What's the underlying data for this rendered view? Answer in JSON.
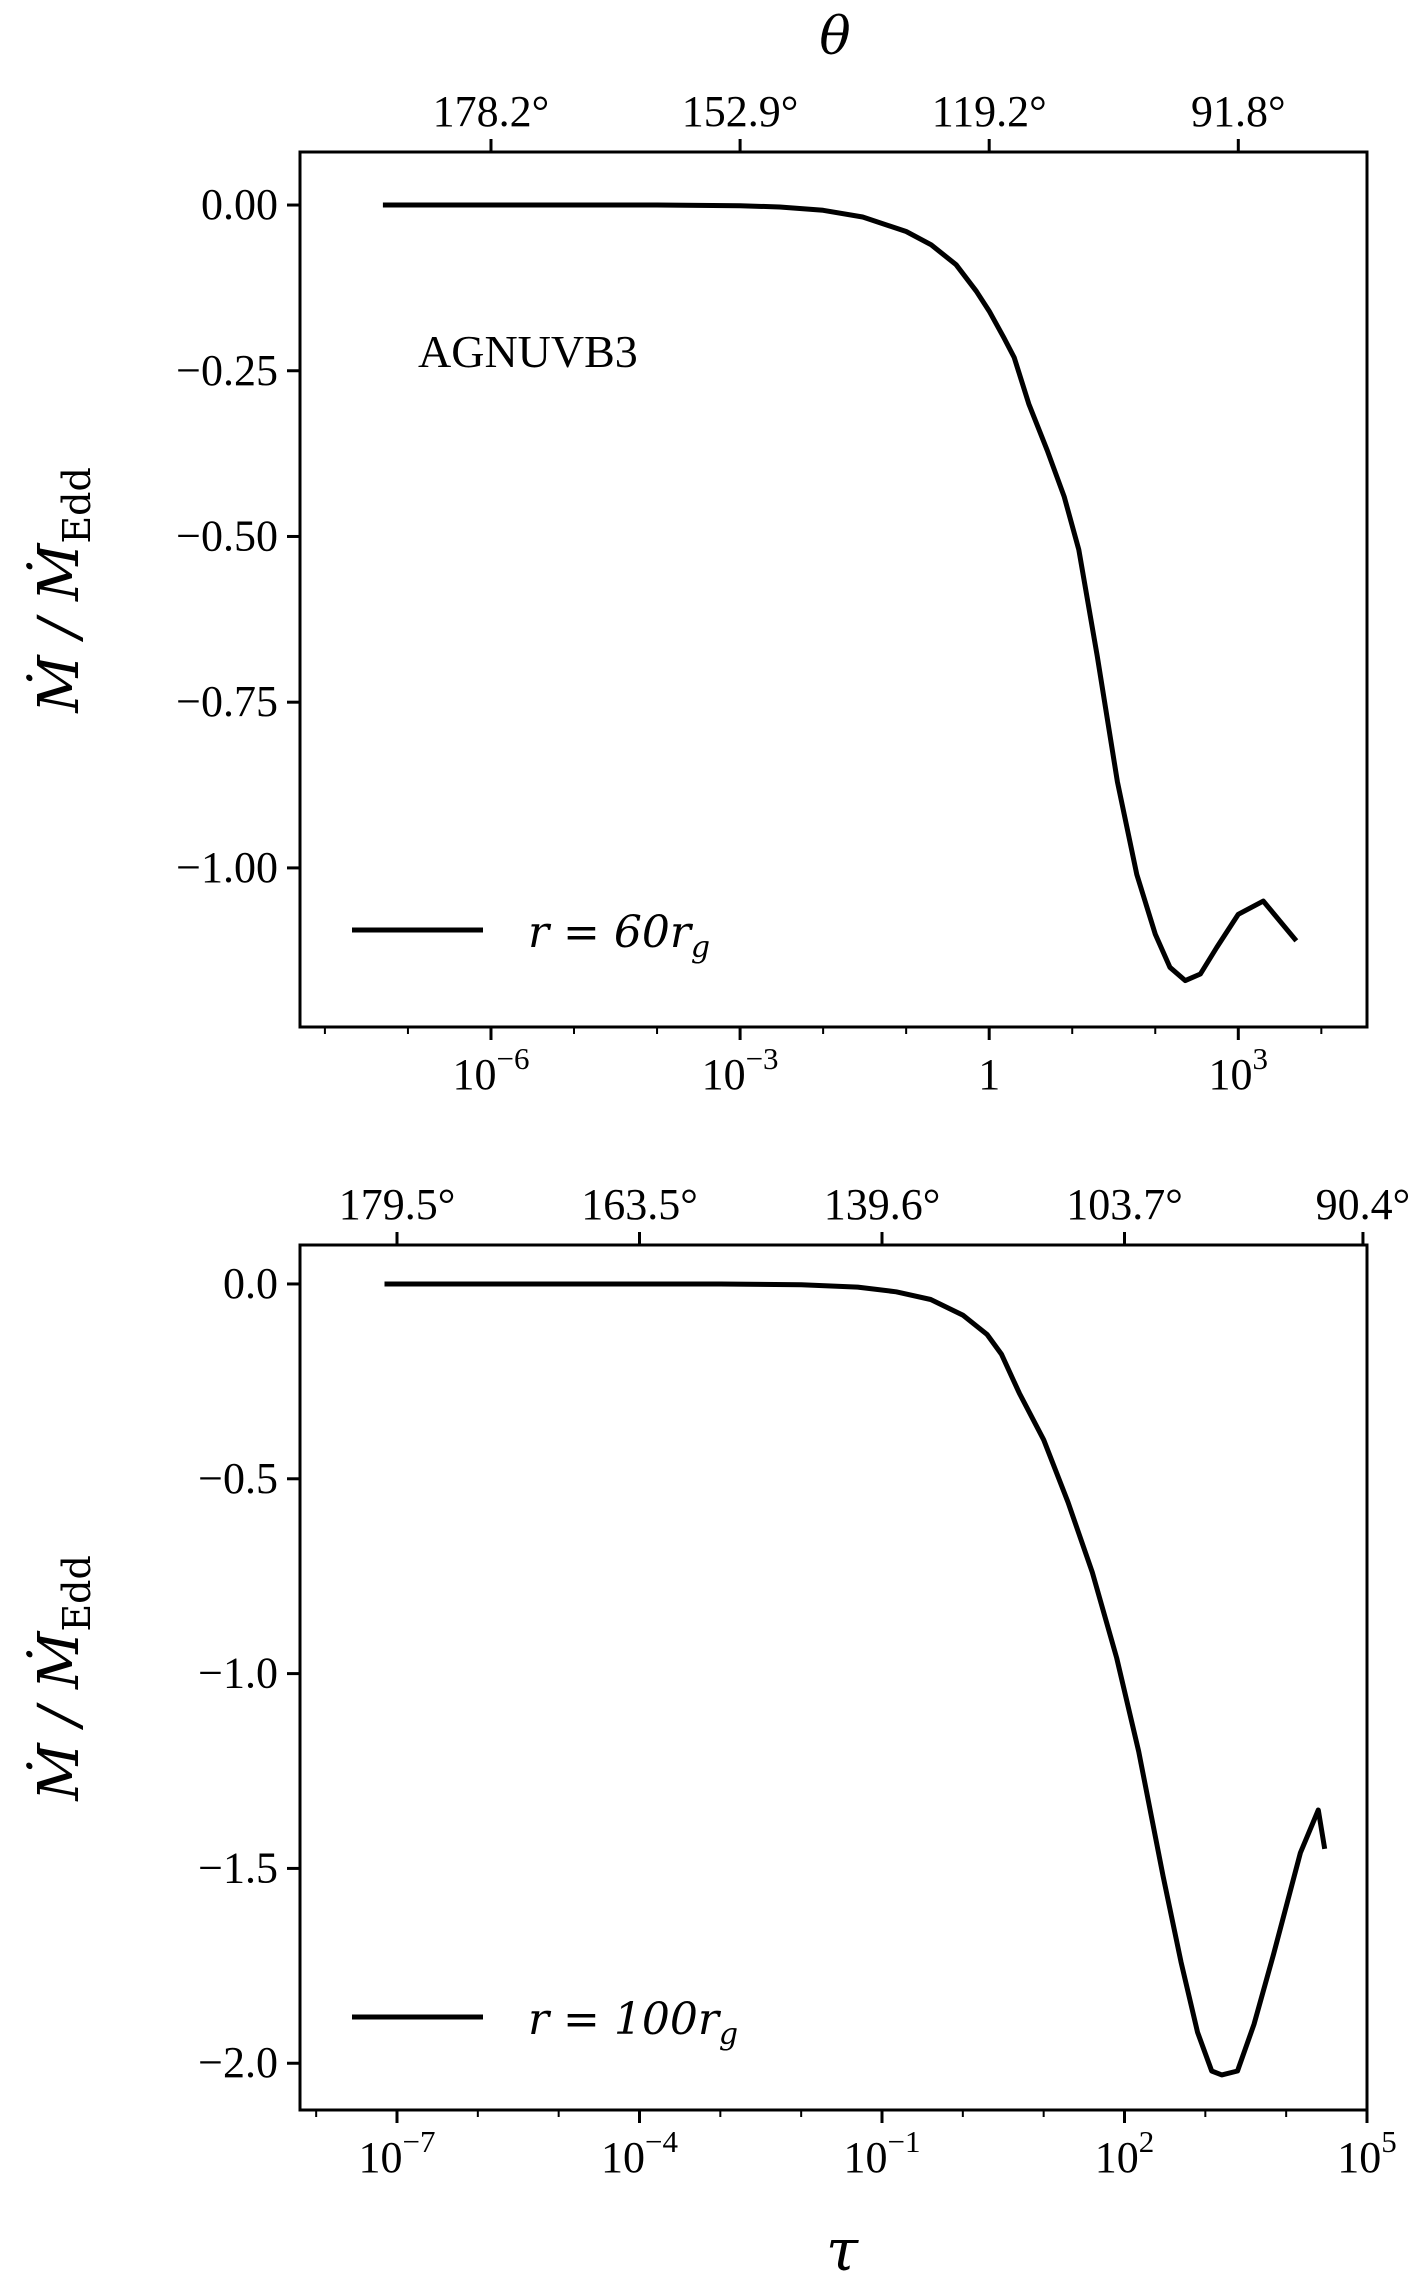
{
  "figure": {
    "top_axis_label": "θ",
    "bottom_axis_label": "τ",
    "annotation": "AGNUVB3",
    "ylabel_main": "Ṁ / Ṁ",
    "ylabel_sub": "Edd"
  },
  "chart_data": [
    {
      "type": "line",
      "xscale": "log",
      "xlim_log10": [
        -8.3,
        4.55
      ],
      "ylim": [
        -1.24,
        0.08
      ],
      "ylabel": "Ṁ / ṀEdd",
      "top_xlabel": "θ",
      "annotation": "AGNUVB3",
      "legend": "r = 60r_g",
      "legend_placement": "lower-left",
      "yticks": [
        {
          "value": 0.0,
          "label": "0.00"
        },
        {
          "value": -0.25,
          "label": "−0.25"
        },
        {
          "value": -0.5,
          "label": "−0.50"
        },
        {
          "value": -0.75,
          "label": "−0.75"
        },
        {
          "value": -1.0,
          "label": "−1.00"
        }
      ],
      "xticks": [
        {
          "log10": -6,
          "label": "10",
          "exp": "−6"
        },
        {
          "log10": -3,
          "label": "10",
          "exp": "−3"
        },
        {
          "log10": 0,
          "label": "1",
          "exp": ""
        },
        {
          "log10": 3,
          "label": "10",
          "exp": "3"
        }
      ],
      "top_ticks": [
        {
          "log10": -6,
          "label": "178.2°"
        },
        {
          "log10": -3,
          "label": "152.9°"
        },
        {
          "log10": 0,
          "label": "119.2°"
        },
        {
          "log10": 3,
          "label": "91.8°"
        }
      ],
      "series": [
        {
          "name": "r = 60r_g",
          "x": [
            5e-08,
            1e-06,
            1e-05,
            0.0001,
            0.001,
            0.003,
            0.01,
            0.03,
            0.1,
            0.2,
            0.4,
            0.7,
            1.0,
            1.5,
            2.0,
            3.0,
            5.0,
            8.0,
            12.0,
            20.0,
            35.0,
            60.0,
            100.0,
            150.0,
            230.0,
            350.0,
            550.0,
            1000.0,
            2000.0,
            5000.0
          ],
          "y": [
            0.0,
            0.0,
            0.0,
            0.0,
            -0.001,
            -0.003,
            -0.008,
            -0.018,
            -0.04,
            -0.06,
            -0.09,
            -0.13,
            -0.16,
            -0.2,
            -0.23,
            -0.3,
            -0.37,
            -0.44,
            -0.52,
            -0.68,
            -0.87,
            -1.01,
            -1.1,
            -1.15,
            -1.17,
            -1.16,
            -1.12,
            -1.07,
            -1.05,
            -1.11
          ]
        }
      ]
    },
    {
      "type": "line",
      "xscale": "log",
      "xlim_log10": [
        -8.2,
        5.0
      ],
      "ylim": [
        -2.12,
        0.1
      ],
      "ylabel": "Ṁ / ṀEdd",
      "xlabel": "τ",
      "legend": "r = 100r_g",
      "legend_placement": "lower-left",
      "yticks": [
        {
          "value": 0.0,
          "label": "0.0"
        },
        {
          "value": -0.5,
          "label": "−0.5"
        },
        {
          "value": -1.0,
          "label": "−1.0"
        },
        {
          "value": -1.5,
          "label": "−1.5"
        },
        {
          "value": -2.0,
          "label": "−2.0"
        }
      ],
      "xticks": [
        {
          "log10": -7,
          "label": "10",
          "exp": "−7"
        },
        {
          "log10": -4,
          "label": "10",
          "exp": "−4"
        },
        {
          "log10": -1,
          "label": "10",
          "exp": "−1"
        },
        {
          "log10": 2,
          "label": "10",
          "exp": "2"
        },
        {
          "log10": 5,
          "label": "10",
          "exp": "5"
        }
      ],
      "top_ticks": [
        {
          "log10": -7,
          "label": "179.5°"
        },
        {
          "log10": -4,
          "label": "163.5°"
        },
        {
          "log10": -1,
          "label": "139.6°"
        },
        {
          "log10": 2,
          "label": "103.7°"
        },
        {
          "log10": 4.95,
          "label": "90.4°"
        }
      ],
      "series": [
        {
          "name": "r = 100r_g",
          "x": [
            7e-08,
            1e-06,
            1e-05,
            0.0001,
            0.001,
            0.01,
            0.05,
            0.15,
            0.4,
            1.0,
            2.0,
            3.0,
            5.0,
            10.0,
            20.0,
            40.0,
            80.0,
            150.0,
            300.0,
            500.0,
            800.0,
            1200.0,
            1600.0,
            2500.0,
            4000.0,
            7000.0,
            15000.0,
            25000.0,
            30000.0
          ],
          "y": [
            0.0,
            0.0,
            0.0,
            0.0,
            0.0,
            -0.002,
            -0.008,
            -0.02,
            -0.04,
            -0.08,
            -0.13,
            -0.18,
            -0.28,
            -0.4,
            -0.56,
            -0.74,
            -0.96,
            -1.2,
            -1.52,
            -1.74,
            -1.92,
            -2.02,
            -2.03,
            -2.02,
            -1.9,
            -1.72,
            -1.46,
            -1.35,
            -1.45
          ]
        }
      ]
    }
  ]
}
